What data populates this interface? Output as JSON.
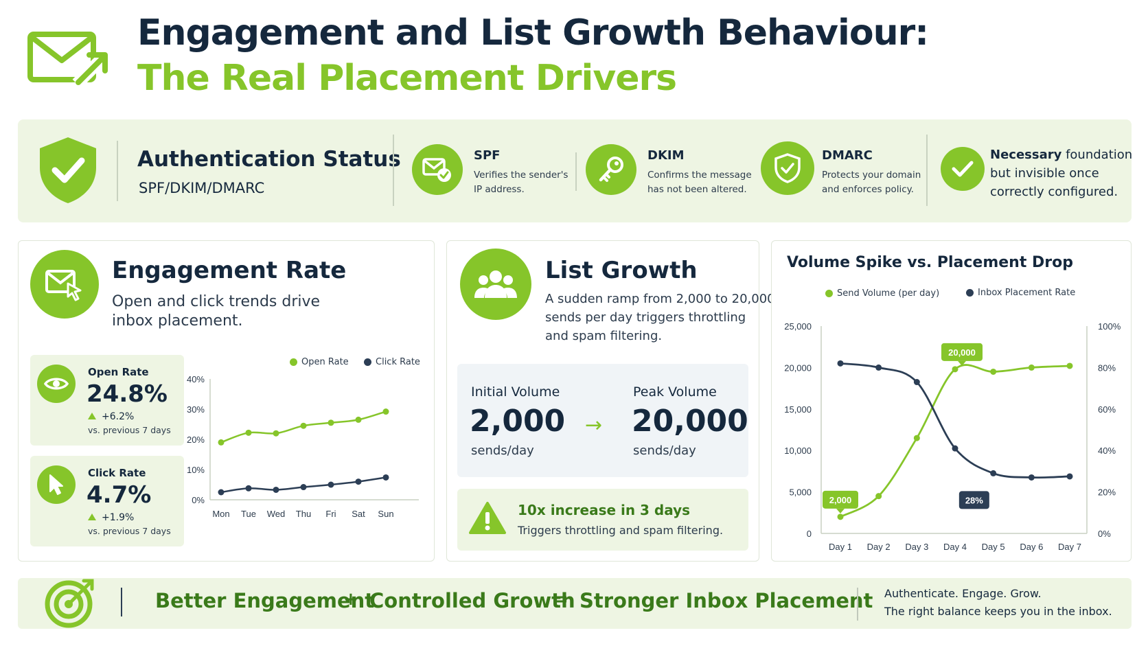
{
  "header": {
    "title_line1": "Engagement and List Growth Behaviour:",
    "title_line2": "The Real Placement Drivers",
    "logo_icon": "mail-arrow-icon"
  },
  "colors": {
    "accent": "#86c52a",
    "navy": "#15283d",
    "light_green": "#eef5e3"
  },
  "authentication": {
    "title": "Authentication Status",
    "subtitle": "SPF/DKIM/DMARC",
    "items": [
      {
        "name": "SPF",
        "icon": "mail-check-icon",
        "line1": "Verifies the sender's",
        "line2": "IP address."
      },
      {
        "name": "DKIM",
        "icon": "key-icon",
        "line1": "Confirms the message",
        "line2": "has not been altered."
      },
      {
        "name": "DMARC",
        "icon": "shield-check-icon",
        "line1": "Protects your domain",
        "line2": "and enforces policy."
      }
    ],
    "note_line1_pre": "Necessary",
    "note_line1_post": "foundation",
    "note_line2": "but invisible once",
    "note_line3": "correctly configured."
  },
  "engagement": {
    "title": "Engagement Rate",
    "subtitle_line1": "Open and click trends drive",
    "subtitle_line2": "inbox placement.",
    "open": {
      "label": "Open Rate",
      "value": "24.8%",
      "change": "+6.2%",
      "note": "vs. previous 7 days"
    },
    "click": {
      "label": "Click Rate",
      "value": "4.7%",
      "change": "+1.9%",
      "note": "vs. previous 7 days"
    }
  },
  "list_growth": {
    "title": "List Growth",
    "subtitle_line1": "A sudden ramp from 2,000 to 20,000",
    "subtitle_line2": "sends per day triggers throttling",
    "subtitle_line3": "and spam filtering.",
    "initial_label": "Initial Volume",
    "initial_value": "2,000",
    "initial_unit": "sends/day",
    "peak_label": "Peak Volume",
    "peak_value": "20,000",
    "peak_unit": "sends/day",
    "arrow": "→",
    "alert_title": "10x increase in 3 days",
    "alert_text": "Triggers throttling and spam filtering."
  },
  "chart_data": [
    {
      "type": "line",
      "x": [
        "Mon",
        "Tue",
        "Wed",
        "Thu",
        "Fri",
        "Sat",
        "Sun"
      ],
      "series": [
        {
          "name": "Open Rate",
          "color": "#86c52a",
          "values": [
            19,
            22.2,
            22,
            24.5,
            25.5,
            26.5,
            29.2
          ]
        },
        {
          "name": "Click Rate",
          "color": "#2c3e55",
          "values": [
            2.5,
            3.8,
            3.3,
            4.2,
            5,
            6,
            7.4
          ]
        }
      ],
      "y_ticks": [
        "0%",
        "10%",
        "20%",
        "30%",
        "40%"
      ],
      "ylim": [
        0,
        40
      ]
    },
    {
      "type": "line",
      "title": "Volume Spike vs. Placement Drop",
      "x": [
        "Day 1",
        "Day 2",
        "Day 3",
        "Day 4",
        "Day 5",
        "Day 6",
        "Day 7"
      ],
      "series": [
        {
          "name": "Send Volume (per day)",
          "axis": "left",
          "color": "#86c52a",
          "values": [
            2000,
            4500,
            11500,
            19800,
            19500,
            20000,
            20200
          ]
        },
        {
          "name": "Inbox Placement Rate",
          "axis": "right",
          "color": "#2c3e55",
          "values": [
            82,
            80,
            73,
            41,
            29,
            27,
            27.5
          ]
        }
      ],
      "y_left_ticks": [
        "0",
        "5,000",
        "10,000",
        "15,000",
        "20,000",
        "25,000"
      ],
      "y_left_lim": [
        0,
        25000
      ],
      "y_right_ticks": [
        "0%",
        "20%",
        "40%",
        "60%",
        "80%",
        "100%"
      ],
      "y_right_lim": [
        0,
        100
      ],
      "annotations": {
        "start": "2,000",
        "peak": "20,000",
        "low": "28%"
      }
    }
  ],
  "footer": {
    "term1": "Better Engagement",
    "op1": "+",
    "term2": "Controlled Growth",
    "op2": "=",
    "result": "Stronger Inbox Placement",
    "right_line1": "Authenticate. Engage. Grow.",
    "right_line2": "The right balance keeps you in the inbox.",
    "icon": "target-icon"
  }
}
